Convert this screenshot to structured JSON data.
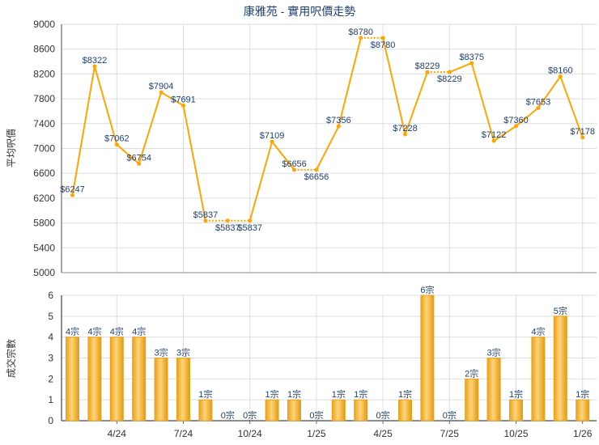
{
  "chart_data": [
    {
      "type": "line",
      "title": "康雅苑 - 實用呎價走勢",
      "ylabel": "平均呎價",
      "ylim": [
        5000,
        9000
      ],
      "yticks": [
        5000,
        5400,
        5800,
        6200,
        6600,
        7000,
        7400,
        7800,
        8200,
        8600,
        9000
      ],
      "xtick_labels": [
        "4/24",
        "7/24",
        "10/24",
        "1/25",
        "4/25",
        "7/25",
        "10/25",
        "1/26"
      ],
      "grid": true,
      "color": "#FFA500",
      "label_prefix": "$",
      "values": [
        6247,
        8322,
        7062,
        6754,
        7904,
        7691,
        5837,
        5837,
        5837,
        7109,
        6656,
        6656,
        7356,
        8780,
        8780,
        7228,
        8229,
        8229,
        8375,
        7122,
        7360,
        7653,
        8160,
        7178
      ]
    },
    {
      "type": "bar",
      "ylabel": "成交宗數",
      "ylim": [
        0,
        6
      ],
      "yticks": [
        0,
        1,
        2,
        3,
        4,
        5,
        6
      ],
      "xtick_labels": [
        "4/24",
        "7/24",
        "10/24",
        "1/25",
        "4/25",
        "7/25",
        "10/25",
        "1/26"
      ],
      "grid": true,
      "color": "#F5B335",
      "label_suffix": "宗",
      "values": [
        4,
        4,
        4,
        4,
        3,
        3,
        1,
        0,
        0,
        1,
        1,
        0,
        1,
        1,
        0,
        1,
        6,
        0,
        2,
        3,
        1,
        4,
        5,
        1
      ]
    }
  ]
}
